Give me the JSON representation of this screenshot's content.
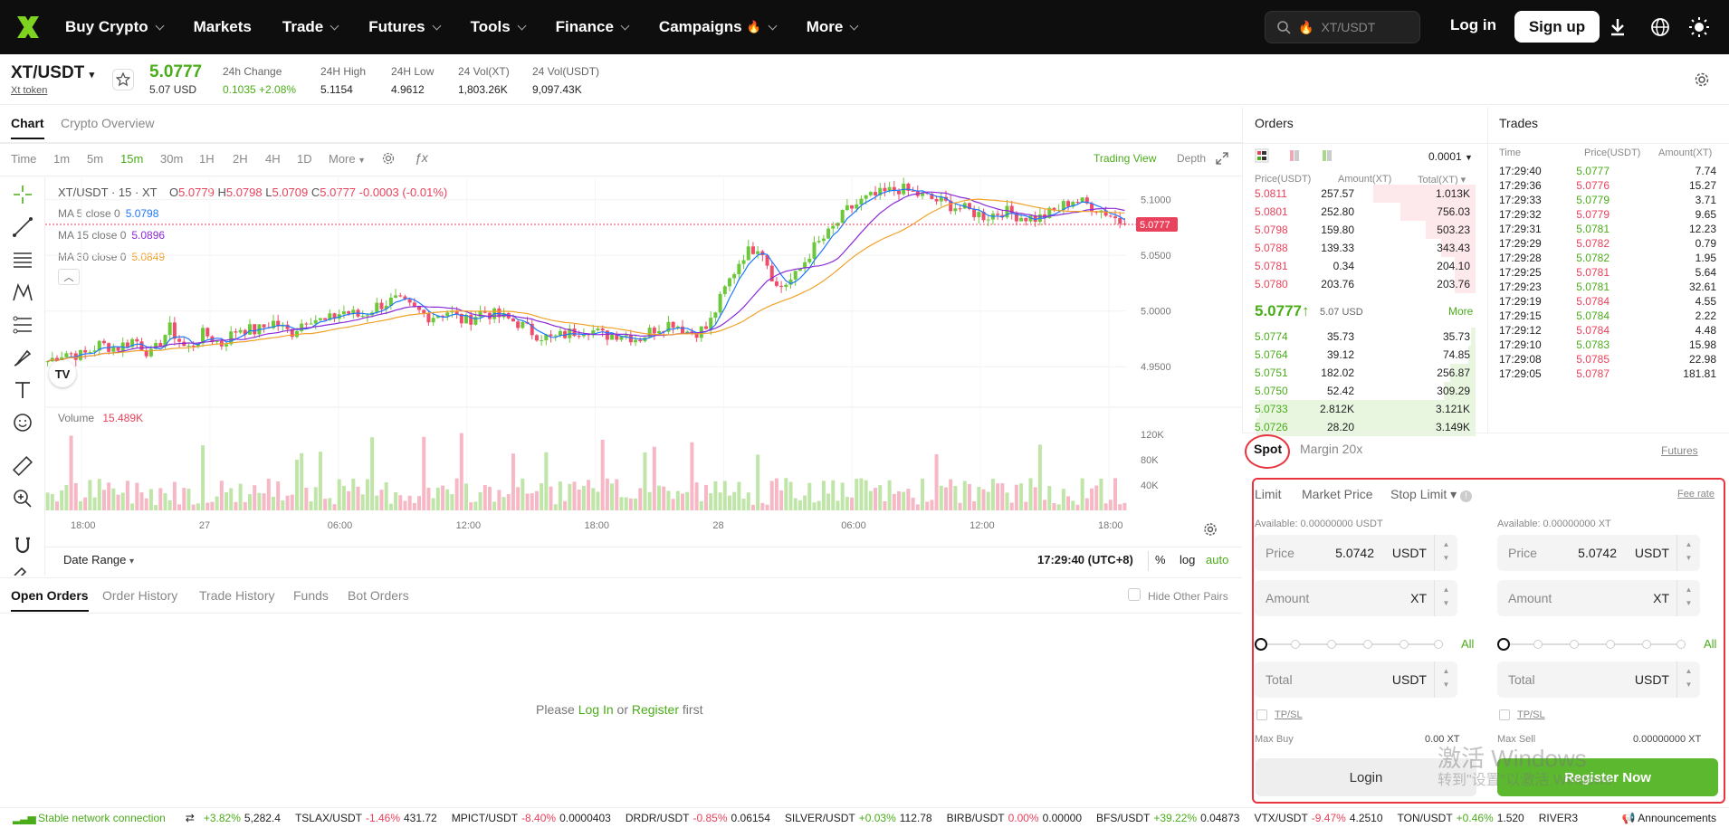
{
  "nav": {
    "items": [
      {
        "label": "Buy Crypto",
        "caret": true
      },
      {
        "label": "Markets",
        "caret": false
      },
      {
        "label": "Trade",
        "caret": true
      },
      {
        "label": "Futures",
        "caret": true
      },
      {
        "label": "Tools",
        "caret": true
      },
      {
        "label": "Finance",
        "caret": true
      },
      {
        "label": "Campaigns",
        "caret": true
      },
      {
        "label": "More",
        "caret": true
      }
    ],
    "search_text": "XT/USDT",
    "login": "Log in",
    "signup": "Sign up"
  },
  "ticker": {
    "pair": "XT/USDT",
    "token": "Xt token",
    "price": "5.0777",
    "price_usd": "5.07 USD",
    "stats": [
      {
        "label": "24h Change",
        "value": "0.1035 +2.08%",
        "color": "#4aac19"
      },
      {
        "label": "24H High",
        "value": "5.1154"
      },
      {
        "label": "24H Low",
        "value": "4.9612"
      },
      {
        "label": "24 Vol(XT)",
        "value": "1,803.26K"
      },
      {
        "label": "24 Vol(USDT)",
        "value": "9,097.43K"
      }
    ]
  },
  "chart_tabs": [
    "Chart",
    "Crypto Overview"
  ],
  "timeframes": [
    "Time",
    "1m",
    "5m",
    "15m",
    "30m",
    "1H",
    "2H",
    "4H",
    "1D",
    "More"
  ],
  "active_timeframe": "15m",
  "chart_links": {
    "trading_view": "Trading View",
    "depth": "Depth"
  },
  "chart_legend": {
    "title": "XT/USDT · 15 · XT",
    "ohlc": {
      "o": "5.0779",
      "h": "5.0798",
      "l": "5.0709",
      "c": "5.0777",
      "chg": "-0.0003 (-0.01%)"
    },
    "ma": [
      {
        "label": "MA 5 close 0",
        "value": "5.0798",
        "color": "#1f77ff"
      },
      {
        "label": "MA 15 close 0",
        "value": "5.0896",
        "color": "#8b2bd9"
      },
      {
        "label": "MA 30 close 0",
        "value": "5.0849",
        "color": "#f0a22a"
      }
    ],
    "volume_label": "Volume",
    "volume_value": "15.489K"
  },
  "chart_data": {
    "type": "candlestick",
    "y_ticks": [
      "5.1000",
      "5.0500",
      "5.0000",
      "4.9500"
    ],
    "ylim": [
      4.925,
      5.12
    ],
    "current_price_label": "5.0777",
    "x_ticks": [
      "18:00",
      "27",
      "06:00",
      "12:00",
      "18:00",
      "28",
      "06:00",
      "12:00",
      "18:00"
    ],
    "volume_ticks": [
      "120K",
      "80K",
      "40K"
    ],
    "close_path": [
      4.955,
      4.963,
      4.96,
      4.97,
      4.967,
      4.975,
      4.96,
      4.985,
      4.965,
      4.98,
      4.97,
      4.985,
      4.982,
      4.99,
      4.98,
      4.995,
      4.99,
      5.0,
      4.995,
      5.005,
      5.01,
      5.002,
      4.995,
      5.0,
      4.99,
      5.0,
      4.995,
      4.99,
      4.98,
      4.975,
      4.98,
      4.985,
      4.978,
      4.98,
      4.975,
      4.985,
      4.99,
      4.98,
      4.985,
      5.02,
      5.05,
      5.06,
      5.02,
      5.03,
      5.055,
      5.07,
      5.09,
      5.1,
      5.105,
      5.11,
      5.105,
      5.1,
      5.095,
      5.09,
      5.085,
      5.09,
      5.085,
      5.083,
      5.09,
      5.1,
      5.095,
      5.088,
      5.0777
    ]
  },
  "chart_footer": {
    "date_range": "Date Range",
    "time": "17:29:40 (UTC+8)",
    "percent": "%",
    "log": "log",
    "auto": "auto"
  },
  "orders": {
    "title": "Orders",
    "precision": "0.0001",
    "headers": [
      "Price(USDT)",
      "Amount(XT)",
      "Total(XT)"
    ],
    "asks": [
      {
        "price": "5.0811",
        "amount": "257.57",
        "total": "1.013K",
        "depth": 0.45
      },
      {
        "price": "5.0801",
        "amount": "252.80",
        "total": "756.03",
        "depth": 0.33
      },
      {
        "price": "5.0798",
        "amount": "159.80",
        "total": "503.23",
        "depth": 0.22
      },
      {
        "price": "5.0788",
        "amount": "139.33",
        "total": "343.43",
        "depth": 0.15
      },
      {
        "price": "5.0781",
        "amount": "0.34",
        "total": "204.10",
        "depth": 0.09
      },
      {
        "price": "5.0780",
        "amount": "203.76",
        "total": "203.76",
        "depth": 0.09
      }
    ],
    "mid_price": "5.0777",
    "mid_usd": "5.07 USD",
    "more": "More",
    "bids": [
      {
        "price": "5.0774",
        "amount": "35.73",
        "total": "35.73",
        "depth": 0.02
      },
      {
        "price": "5.0764",
        "amount": "39.12",
        "total": "74.85",
        "depth": 0.03
      },
      {
        "price": "5.0751",
        "amount": "182.02",
        "total": "256.87",
        "depth": 0.11
      },
      {
        "price": "5.0750",
        "amount": "52.42",
        "total": "309.29",
        "depth": 0.14
      },
      {
        "price": "5.0733",
        "amount": "2.812K",
        "total": "3.121K",
        "depth": 0.95
      },
      {
        "price": "5.0726",
        "amount": "28.20",
        "total": "3.149K",
        "depth": 0.96
      }
    ]
  },
  "trades": {
    "title": "Trades",
    "headers": [
      "Time",
      "Price(USDT)",
      "Amount(XT)"
    ],
    "rows": [
      {
        "time": "17:29:40",
        "price": "5.0777",
        "amount": "7.74",
        "side": "buy"
      },
      {
        "time": "17:29:36",
        "price": "5.0776",
        "amount": "15.27",
        "side": "sell"
      },
      {
        "time": "17:29:33",
        "price": "5.0779",
        "amount": "3.71",
        "side": "buy"
      },
      {
        "time": "17:29:32",
        "price": "5.0779",
        "amount": "9.65",
        "side": "sell"
      },
      {
        "time": "17:29:31",
        "price": "5.0781",
        "amount": "12.23",
        "side": "buy"
      },
      {
        "time": "17:29:29",
        "price": "5.0782",
        "amount": "0.79",
        "side": "sell"
      },
      {
        "time": "17:29:28",
        "price": "5.0782",
        "amount": "1.95",
        "side": "buy"
      },
      {
        "time": "17:29:25",
        "price": "5.0781",
        "amount": "5.64",
        "side": "sell"
      },
      {
        "time": "17:29:23",
        "price": "5.0781",
        "amount": "32.61",
        "side": "buy"
      },
      {
        "time": "17:29:19",
        "price": "5.0784",
        "amount": "4.55",
        "side": "sell"
      },
      {
        "time": "17:29:15",
        "price": "5.0784",
        "amount": "2.22",
        "side": "buy"
      },
      {
        "time": "17:29:12",
        "price": "5.0784",
        "amount": "4.48",
        "side": "sell"
      },
      {
        "time": "17:29:10",
        "price": "5.0783",
        "amount": "15.98",
        "side": "buy"
      },
      {
        "time": "17:29:08",
        "price": "5.0785",
        "amount": "22.98",
        "side": "sell"
      },
      {
        "time": "17:29:05",
        "price": "5.0787",
        "amount": "181.81",
        "side": "sell"
      }
    ]
  },
  "trade_form": {
    "tabs": [
      "Spot",
      "Margin 20x"
    ],
    "futures": "Futures",
    "order_types": [
      "Limit",
      "Market Price",
      "Stop Limit"
    ],
    "fee_rate": "Fee rate",
    "buy": {
      "available": "Available: 0.00000000 USDT",
      "price_label": "Price",
      "price": "5.0742",
      "price_unit": "USDT",
      "amount_label": "Amount",
      "amount_unit": "XT",
      "total_label": "Total",
      "total_unit": "USDT",
      "all": "All",
      "tpsl": "TP/SL",
      "max_label": "Max Buy",
      "max_value": "0.00 XT"
    },
    "sell": {
      "available": "Available: 0.00000000 XT",
      "price_label": "Price",
      "price": "5.0742",
      "price_unit": "USDT",
      "amount_label": "Amount",
      "amount_unit": "XT",
      "total_label": "Total",
      "total_unit": "USDT",
      "all": "All",
      "tpsl": "TP/SL",
      "max_label": "Max Sell",
      "max_value": "0.00000000 XT"
    },
    "login_btn": "Login",
    "register_btn": "Register Now"
  },
  "watermark": {
    "line1": "激活 Windows",
    "line2": "转到\"设置\"以激活 Windows"
  },
  "order_tabs": [
    "Open Orders",
    "Order History",
    "Trade History",
    "Funds",
    "Bot Orders"
  ],
  "hide_other_pairs": "Hide Other Pairs",
  "empty": {
    "please": "Please ",
    "login": "Log In",
    "or": " or ",
    "register": "Register",
    "first": " first"
  },
  "footer": {
    "network": "Stable network connection",
    "tickers": [
      {
        "name": "",
        "chg": "+3.82%",
        "price": "5,282.4",
        "dir": "up"
      },
      {
        "name": "TSLAX/USDT",
        "chg": "-1.46%",
        "price": "431.72",
        "dir": "down"
      },
      {
        "name": "MPICT/USDT",
        "chg": "-8.40%",
        "price": "0.0000403",
        "dir": "down"
      },
      {
        "name": "DRDR/USDT",
        "chg": "-0.85%",
        "price": "0.06154",
        "dir": "down"
      },
      {
        "name": "SILVER/USDT",
        "chg": "+0.03%",
        "price": "112.78",
        "dir": "up"
      },
      {
        "name": "BIRB/USDT",
        "chg": "0.00%",
        "price": "0.00000",
        "dir": "down"
      },
      {
        "name": "BFS/USDT",
        "chg": "+39.22%",
        "price": "0.04873",
        "dir": "up"
      },
      {
        "name": "VTX/USDT",
        "chg": "-9.47%",
        "price": "4.2510",
        "dir": "down"
      },
      {
        "name": "TON/USDT",
        "chg": "+0.46%",
        "price": "1.520",
        "dir": "up"
      },
      {
        "name": "RIVER3",
        "chg": "",
        "price": "",
        "dir": "up"
      }
    ],
    "announcements": "Announcements"
  }
}
